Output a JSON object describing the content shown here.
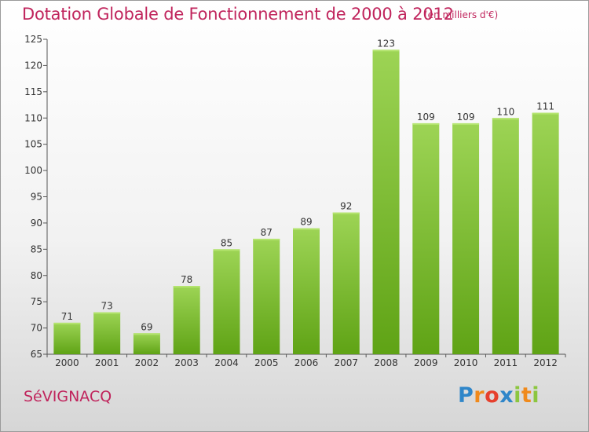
{
  "header": {
    "title": "Dotation Globale de Fonctionnement de 2000 à 2012",
    "unit": "(en milliers d'€)"
  },
  "footer": {
    "commune": "SéVIGNACQ",
    "logo": "Proxiti"
  },
  "colors": {
    "accent": "#c0245c",
    "bar_top": "#9dd455",
    "bar_bottom": "#5fa315",
    "axis": "#555555"
  },
  "chart_data": {
    "type": "bar",
    "title": "Dotation Globale de Fonctionnement de 2000 à 2012",
    "subtitle": "(en milliers d'€)",
    "xlabel": "",
    "ylabel": "",
    "categories": [
      "2000",
      "2001",
      "2002",
      "2003",
      "2004",
      "2005",
      "2006",
      "2007",
      "2008",
      "2009",
      "2010",
      "2011",
      "2012"
    ],
    "values": [
      71,
      73,
      69,
      78,
      85,
      87,
      89,
      92,
      123,
      109,
      109,
      110,
      111
    ],
    "ylim": [
      65,
      125
    ],
    "yticks": [
      65,
      70,
      75,
      80,
      85,
      90,
      95,
      100,
      105,
      110,
      115,
      120,
      125
    ],
    "grid": false,
    "legend": "none"
  }
}
